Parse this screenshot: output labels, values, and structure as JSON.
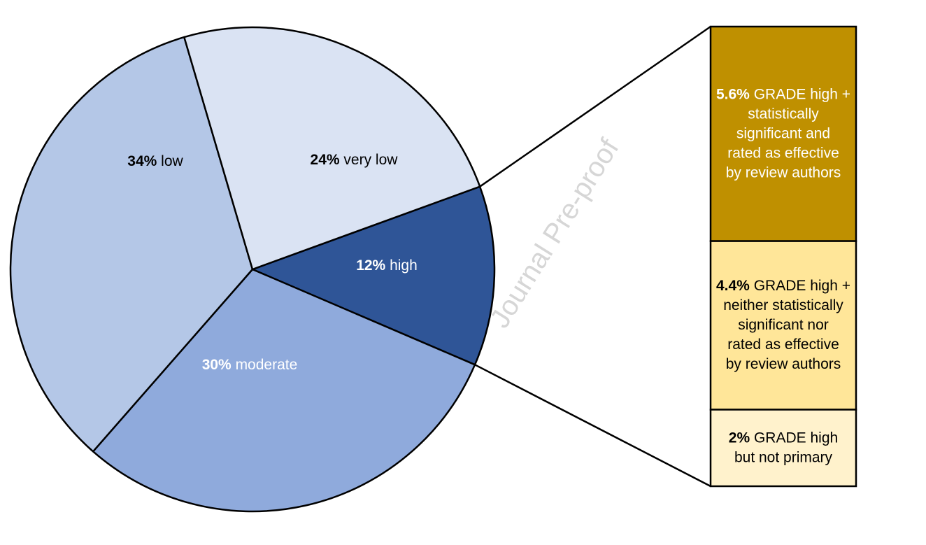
{
  "chart_data": [
    {
      "type": "pie",
      "slices": [
        {
          "pct_label": "12%",
          "label": "high",
          "value": 12,
          "color": "#2F5597",
          "text_color": "#ffffff"
        },
        {
          "pct_label": "30%",
          "label": "moderate",
          "value": 30,
          "color": "#8FAADC",
          "text_color": "#ffffff"
        },
        {
          "pct_label": "34%",
          "label": "low",
          "value": 34,
          "color": "#B4C7E7",
          "text_color": "#000000"
        },
        {
          "pct_label": "24%",
          "label": "very low",
          "value": 24,
          "color": "#DAE3F3",
          "text_color": "#000000"
        }
      ],
      "exploded_slice": "high"
    },
    {
      "type": "bar",
      "stacked": true,
      "breakdown_of": "high",
      "segments": [
        {
          "pct_label": "5.6%",
          "value": 5.6,
          "lines": [
            " GRADE high +",
            "statistically",
            "significant and",
            "rated as effective",
            "by review authors"
          ],
          "color": "#BF9000",
          "text_color": "#ffffff"
        },
        {
          "pct_label": "4.4%",
          "value": 4.4,
          "lines": [
            " GRADE high +",
            "neither statistically",
            "significant nor",
            "rated as effective",
            "by review authors"
          ],
          "color": "#FFE699",
          "text_color": "#000000"
        },
        {
          "pct_label": "2%",
          "value": 2,
          "lines": [
            " GRADE high",
            "but not primary"
          ],
          "color": "#FFF2CC",
          "text_color": "#000000"
        }
      ]
    }
  ],
  "watermark": "Journal Pre-proof"
}
